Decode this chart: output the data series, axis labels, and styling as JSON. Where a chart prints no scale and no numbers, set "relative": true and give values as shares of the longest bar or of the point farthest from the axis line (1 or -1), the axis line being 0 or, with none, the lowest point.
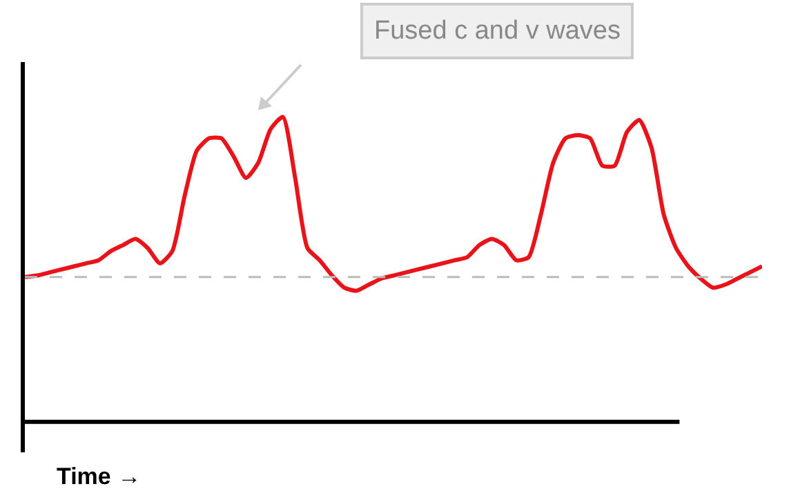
{
  "chart_data": {
    "type": "line",
    "relative": true,
    "xlabel": "Time →",
    "annotations": [
      "Fused c and v waves"
    ],
    "categories": [
      null,
      null,
      null,
      null,
      null,
      null,
      null,
      null,
      null,
      null,
      null,
      null,
      null,
      null,
      null,
      null,
      null,
      null,
      null,
      null,
      null,
      null,
      null,
      null,
      null,
      null,
      null,
      null,
      null,
      null,
      null,
      null,
      null,
      null,
      null,
      null,
      null,
      null,
      null,
      null,
      null,
      null,
      null,
      null,
      null,
      null,
      null,
      null,
      null,
      null,
      null,
      null,
      null,
      null,
      null,
      null,
      null,
      null,
      null,
      null,
      null
    ],
    "series": [
      {
        "color": "#e8141a",
        "values": [
          0.475,
          0.48,
          0.49,
          0.5,
          0.51,
          0.52,
          0.53,
          0.56,
          0.58,
          0.6,
          0.57,
          0.52,
          0.56,
          0.74,
          0.89,
          0.93,
          0.93,
          0.87,
          0.8,
          0.85,
          0.96,
          1,
          0.8,
          0.57,
          0.53,
          0.48,
          0.44,
          0.43,
          0.45,
          0.47,
          0.48,
          0.49,
          0.5,
          0.51,
          0.52,
          0.53,
          0.54,
          0.58,
          0.6,
          0.58,
          0.53,
          0.54,
          0.68,
          0.85,
          0.93,
          0.94,
          0.93,
          0.84,
          0.84,
          0.95,
          0.99,
          0.9,
          0.68,
          0.57,
          0.51,
          0.47,
          0.44,
          0.45,
          0.47,
          0.49,
          0.51
        ]
      }
    ],
    "line_style": "solid",
    "ref_lines": [
      {
        "axis": "y",
        "value": 0.475,
        "color": "#bbbbbb",
        "line_style": "dashed"
      }
    ]
  }
}
